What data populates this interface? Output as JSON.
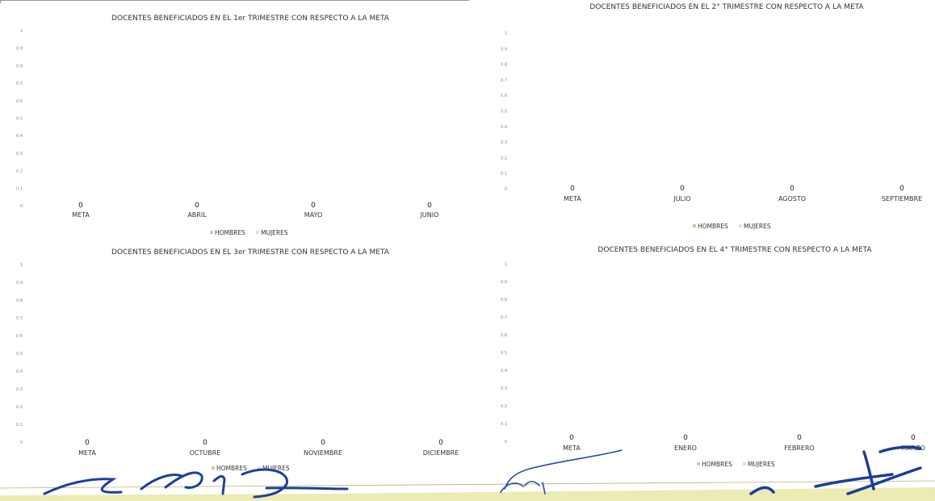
{
  "chart_data": [
    {
      "type": "bar",
      "title": "DOCENTES BENEFICIADOS EN EL 1er TRIMESTRE CON RESPECTO A LA META",
      "categories": [
        "META",
        "ABRIL",
        "MAYO",
        "JUNIO"
      ],
      "series": [
        {
          "name": "HOMBRES",
          "values": [
            0,
            0,
            0,
            0
          ]
        },
        {
          "name": "MUJERES",
          "values": [
            0,
            0,
            0,
            0
          ]
        }
      ],
      "data_labels": [
        "0",
        "0",
        "0",
        "0"
      ],
      "yticks": [
        "1",
        "0.9",
        "0.8",
        "0.7",
        "0.6",
        "0.5",
        "0.4",
        "0.3",
        "0.2",
        "0.1",
        "0"
      ],
      "ylim": [
        0,
        1
      ],
      "legend": "bottom",
      "colors": [
        "#b5d99c",
        "#f2dbc1"
      ]
    },
    {
      "type": "bar",
      "title": "DOCENTES BENEFICIADOS EN EL 2° TRIMESTRE CON RESPECTO A LA META",
      "categories": [
        "META",
        "JULIO",
        "AGOSTO",
        "SEPTIEMBRE"
      ],
      "series": [
        {
          "name": "HOMBRES",
          "values": [
            0,
            0,
            0,
            0
          ]
        },
        {
          "name": "MUJERES",
          "values": [
            0,
            0,
            0,
            0
          ]
        }
      ],
      "data_labels": [
        "0",
        "0",
        "0",
        "0"
      ],
      "yticks": [
        "1",
        "0.9",
        "0.8",
        "0.7",
        "0.6",
        "0.5",
        "0.4",
        "0.3",
        "0.2",
        "0.1",
        "0"
      ],
      "ylim": [
        0,
        1
      ],
      "legend": "bottom",
      "colors": [
        "#b5d99c",
        "#f2dbc1"
      ]
    },
    {
      "type": "bar",
      "title": "DOCENTES BENEFICIADOS EN EL 3er TRIMESTRE CON RESPECTO A LA META",
      "categories": [
        "META",
        "OCTUBRE",
        "NOVIEMBRE",
        "DICIEMBRE"
      ],
      "series": [
        {
          "name": "HOMBRES",
          "values": [
            0,
            0,
            0,
            0
          ]
        },
        {
          "name": "MUJERES",
          "values": [
            0,
            0,
            0,
            0
          ]
        }
      ],
      "data_labels": [
        "0",
        "0",
        "0",
        "0"
      ],
      "yticks": [
        "1",
        "0.9",
        "0.8",
        "0.7",
        "0.6",
        "0.5",
        "0.4",
        "0.3",
        "0.2",
        "0.1",
        "0"
      ],
      "ylim": [
        0,
        1
      ],
      "legend": "bottom",
      "colors": [
        "#b5d99c",
        "#f2dbc1"
      ]
    },
    {
      "type": "bar",
      "title": "DOCENTES BENEFICIADOS EN EL 4° TRIMESTRE CON RESPECTO A LA META",
      "categories": [
        "META",
        "ENERO",
        "FEBRERO",
        "MARZO"
      ],
      "series": [
        {
          "name": "HOMBRES",
          "values": [
            0,
            0,
            0,
            0
          ]
        },
        {
          "name": "MUJERES",
          "values": [
            0,
            0,
            0,
            0
          ]
        }
      ],
      "data_labels": [
        "0",
        "0",
        "0",
        "0"
      ],
      "yticks": [
        "1",
        "0.9",
        "0.8",
        "0.7",
        "0.6",
        "0.5",
        "0.4",
        "0.3",
        "0.2",
        "0.1",
        "0"
      ],
      "ylim": [
        0,
        1
      ],
      "legend": "bottom",
      "colors": [
        "#b5d99c",
        "#f2dbc1"
      ]
    }
  ],
  "signature_colors": [
    "#1f3f9c",
    "#e9e5a8"
  ]
}
